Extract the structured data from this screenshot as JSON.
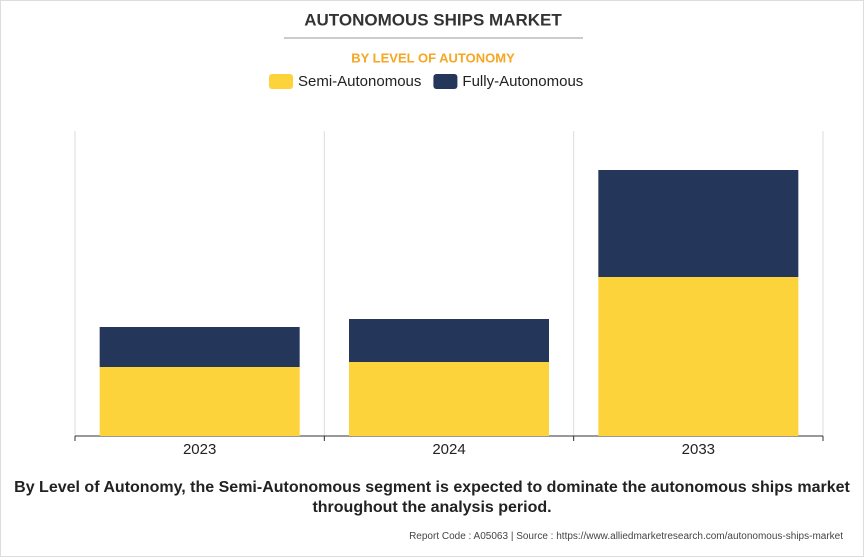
{
  "chart_data": {
    "type": "stacked-bar",
    "title": "AUTONOMOUS SHIPS MARKET",
    "subtitle": "BY LEVEL OF AUTONOMY",
    "categories": [
      "2023",
      "2024",
      "2033"
    ],
    "series": [
      {
        "name": "Semi-Autonomous",
        "color": "#fdd33b",
        "values": [
          69,
          74,
          159
        ]
      },
      {
        "name": "Fully-Autonomous",
        "color": "#243659",
        "values": [
          40,
          43,
          107
        ]
      }
    ],
    "caption": "By Level of Autonomy, the Semi-Autonomous segment is expected to dominate the autonomous ships market throughout the analysis period.",
    "report_code": "Report Code : A05063",
    "source": "Source : https://www.alliedmarketresearch.com/autonomous-ships-market"
  }
}
